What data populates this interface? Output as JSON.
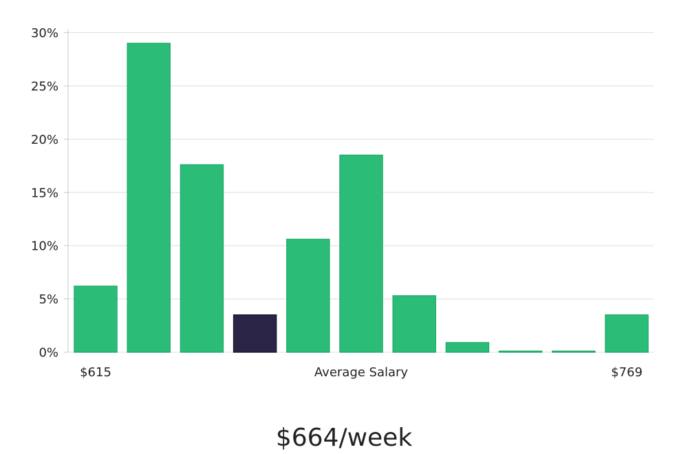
{
  "chart_data": {
    "type": "bar",
    "values": [
      6.2,
      29.0,
      17.6,
      3.5,
      10.6,
      18.5,
      5.3,
      0.9,
      0.1,
      0.1,
      3.5
    ],
    "highlight_index": 3,
    "y_ticks": [
      "0%",
      "5%",
      "10%",
      "15%",
      "20%",
      "25%",
      "30%"
    ],
    "ylim": [
      0,
      30
    ],
    "grid": true,
    "x_left_label": "$615",
    "x_center_label": "Average Salary",
    "x_right_label": "$769",
    "headline": "$664/week",
    "colors": {
      "bar": "#2bbd77",
      "bar_stroke": "#22ad6a",
      "highlight": "#2a2546",
      "highlight_stroke": "#1b1833",
      "grid": "#dcdde0",
      "axis": "#c8c9cc"
    }
  }
}
